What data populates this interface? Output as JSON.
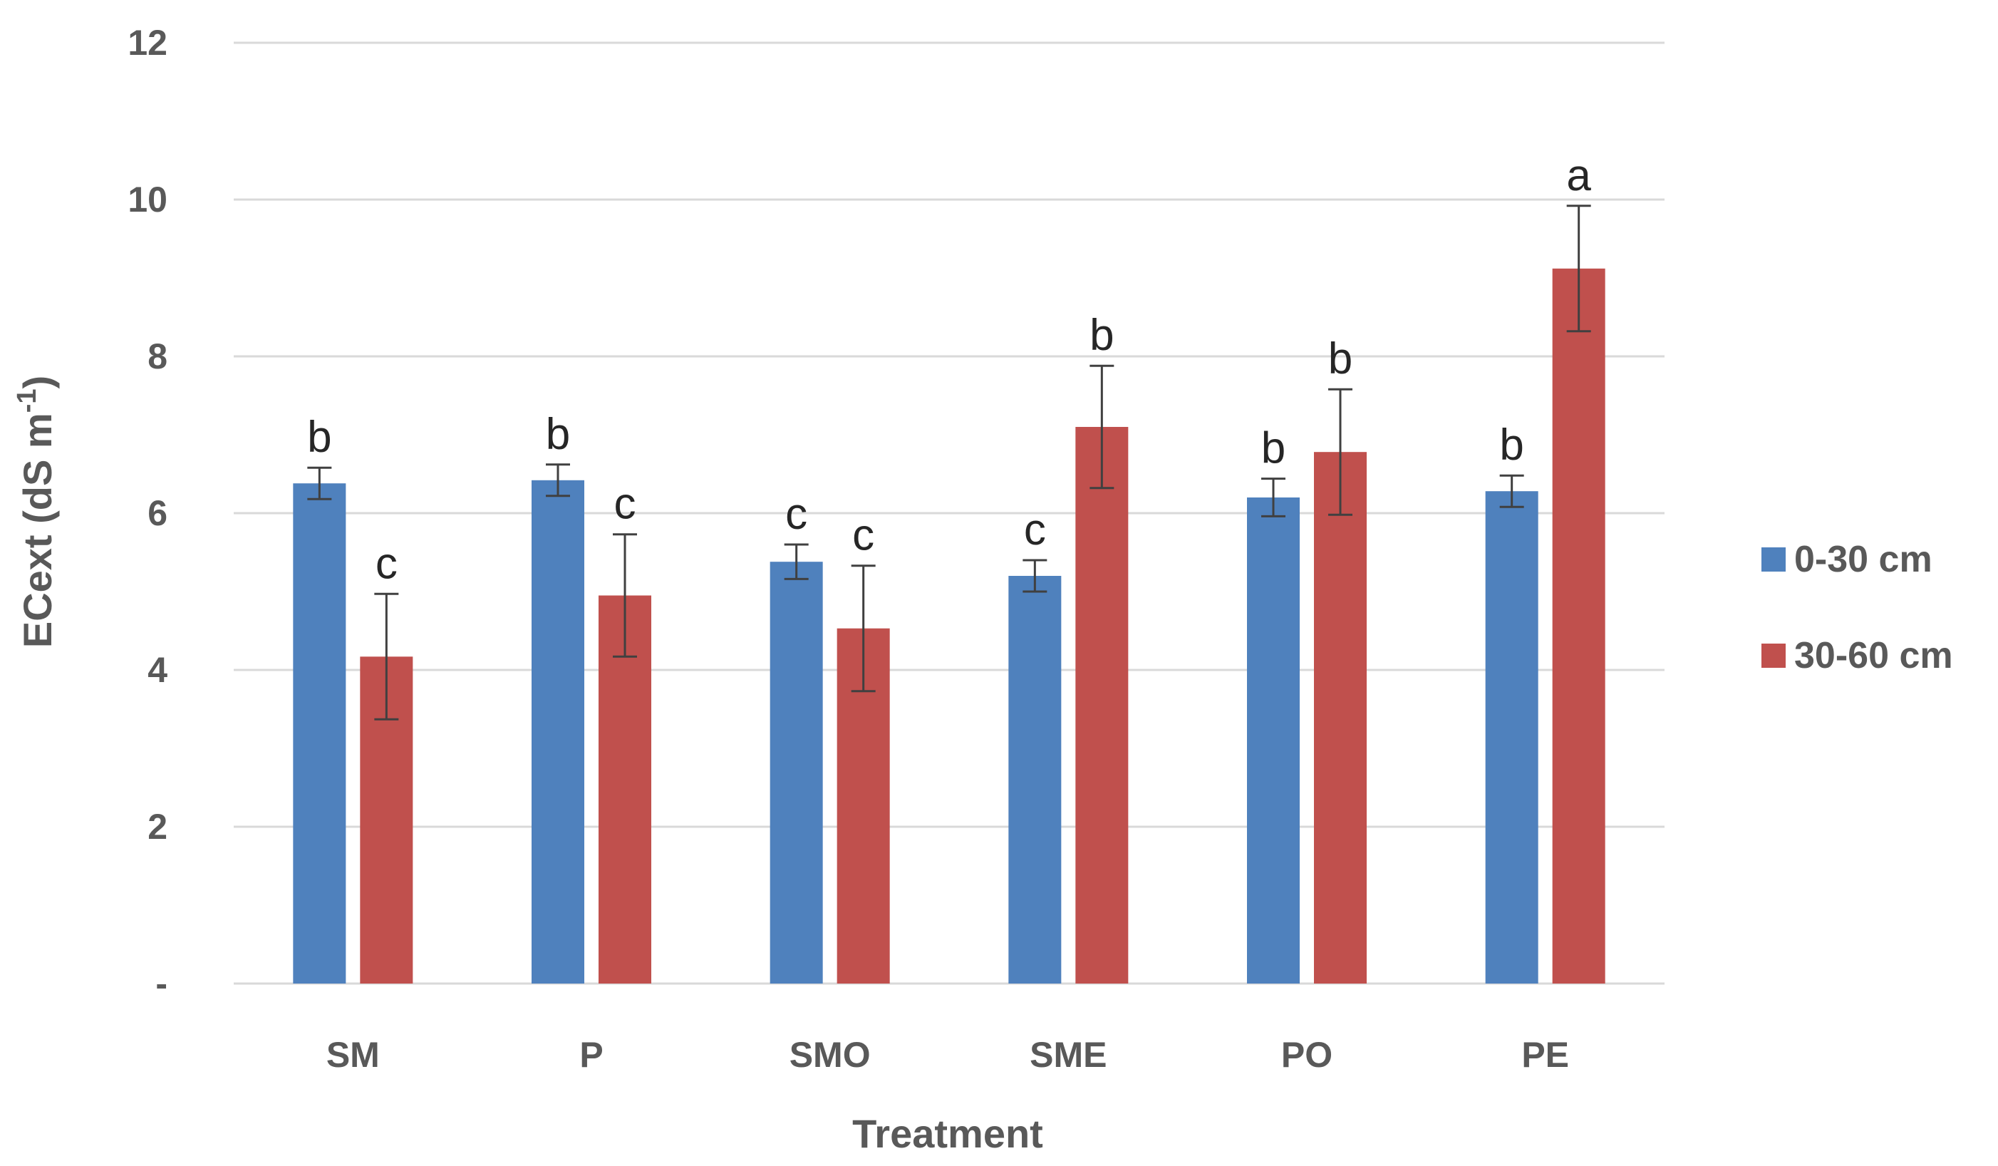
{
  "chart_data": {
    "type": "bar",
    "title": "",
    "xlabel": "Treatment",
    "ylabel": "ECext (dS m-1)",
    "ylabel_main": "ECext (dS m",
    "ylabel_sup": "-1",
    "ylabel_close": ")",
    "ylim": [
      0,
      12
    ],
    "yticks": [
      0,
      2,
      4,
      6,
      8,
      10,
      12
    ],
    "ytick_labels": [
      "-",
      "2",
      "4",
      "6",
      "8",
      "10",
      "12"
    ],
    "grid": true,
    "legend_position": "right",
    "categories": [
      "SM",
      "P",
      "SMO",
      "SME",
      "PO",
      "PE"
    ],
    "series": [
      {
        "name": "0-30 cm",
        "color": "#4F81BD",
        "values": [
          6.38,
          6.42,
          5.38,
          5.2,
          6.2,
          6.28
        ],
        "errors": [
          0.2,
          0.2,
          0.22,
          0.2,
          0.24,
          0.2
        ],
        "sig_labels": [
          "b",
          "b",
          "c",
          "c",
          "b",
          "b"
        ]
      },
      {
        "name": "30-60 cm",
        "color": "#C0504D",
        "values": [
          4.17,
          4.95,
          4.53,
          7.1,
          6.78,
          9.12
        ],
        "errors": [
          0.8,
          0.78,
          0.8,
          0.78,
          0.8,
          0.8
        ],
        "sig_labels": [
          "c",
          "c",
          "c",
          "b",
          "b",
          "a"
        ]
      }
    ]
  }
}
